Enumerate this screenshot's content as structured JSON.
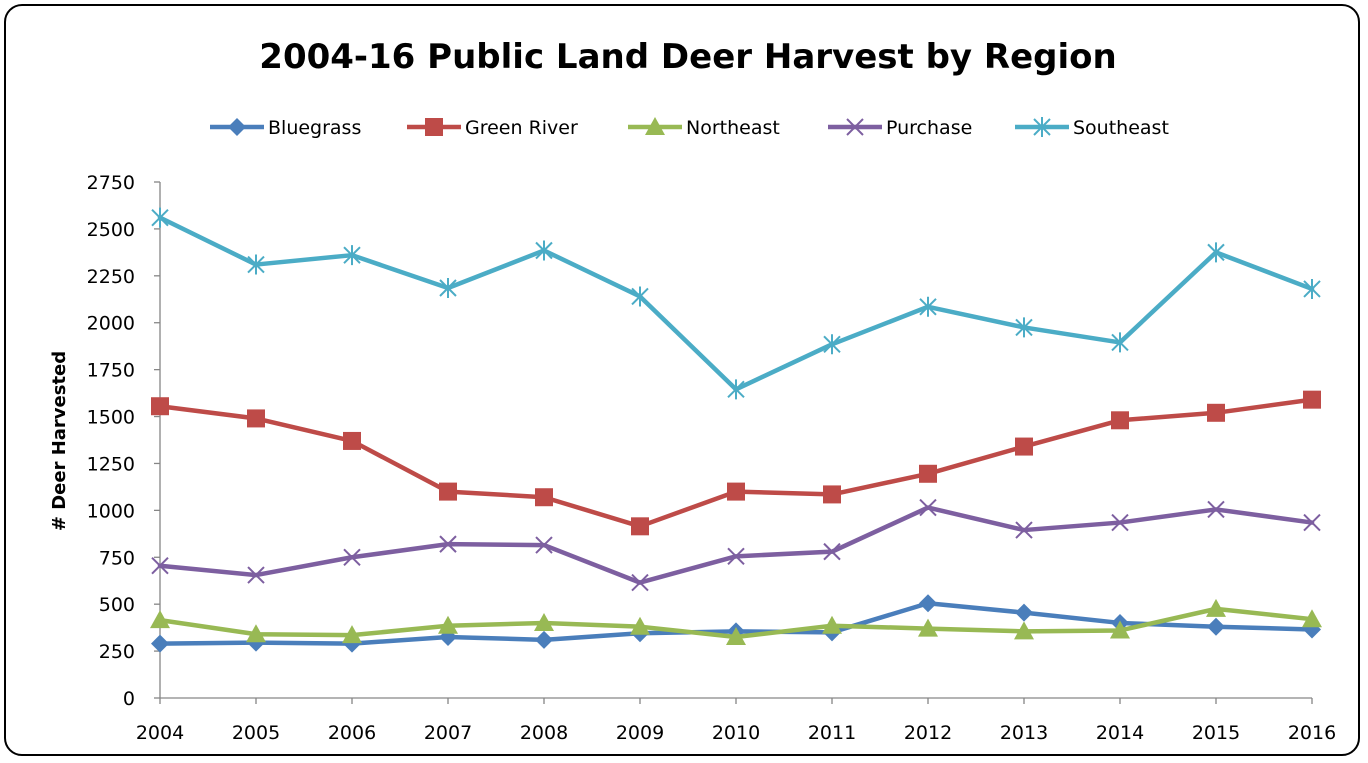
{
  "chart_data": {
    "type": "line",
    "title": "2004-16 Public Land Deer Harvest by Region",
    "xlabel": "",
    "ylabel": "# Deer Harvested",
    "categories": [
      "2004",
      "2005",
      "2006",
      "2007",
      "2008",
      "2009",
      "2010",
      "2011",
      "2012",
      "2013",
      "2014",
      "2015",
      "2016"
    ],
    "ylim": [
      0,
      2750
    ],
    "yticks": [
      0,
      250,
      500,
      750,
      1000,
      1250,
      1500,
      1750,
      2000,
      2250,
      2500,
      2750
    ],
    "ytick_labels": [
      "0",
      "250",
      "500",
      "750",
      "1000",
      "1250",
      "1500",
      "1750",
      "2000",
      "2250",
      "2500",
      "2750"
    ],
    "grid": false,
    "legend_position": "top",
    "series": [
      {
        "name": "Bluegrass",
        "color": "#4a7ebb",
        "marker": "diamond",
        "values": [
          290,
          295,
          290,
          325,
          310,
          345,
          355,
          350,
          505,
          455,
          400,
          380,
          365
        ]
      },
      {
        "name": "Green River",
        "color": "#be4b48",
        "marker": "square",
        "values": [
          1555,
          1490,
          1370,
          1100,
          1070,
          915,
          1100,
          1085,
          1195,
          1340,
          1480,
          1520,
          1590
        ]
      },
      {
        "name": "Northeast",
        "color": "#98b954",
        "marker": "triangle",
        "values": [
          415,
          340,
          335,
          385,
          400,
          380,
          325,
          385,
          370,
          355,
          360,
          475,
          420
        ]
      },
      {
        "name": "Purchase",
        "color": "#7d5fa0",
        "marker": "x",
        "values": [
          705,
          655,
          750,
          820,
          815,
          615,
          755,
          780,
          1015,
          895,
          935,
          1005,
          935
        ]
      },
      {
        "name": "Southeast",
        "color": "#4bacc6",
        "marker": "star",
        "values": [
          2560,
          2310,
          2360,
          2185,
          2385,
          2140,
          1645,
          1885,
          2085,
          1975,
          1895,
          2375,
          2180
        ]
      }
    ]
  }
}
